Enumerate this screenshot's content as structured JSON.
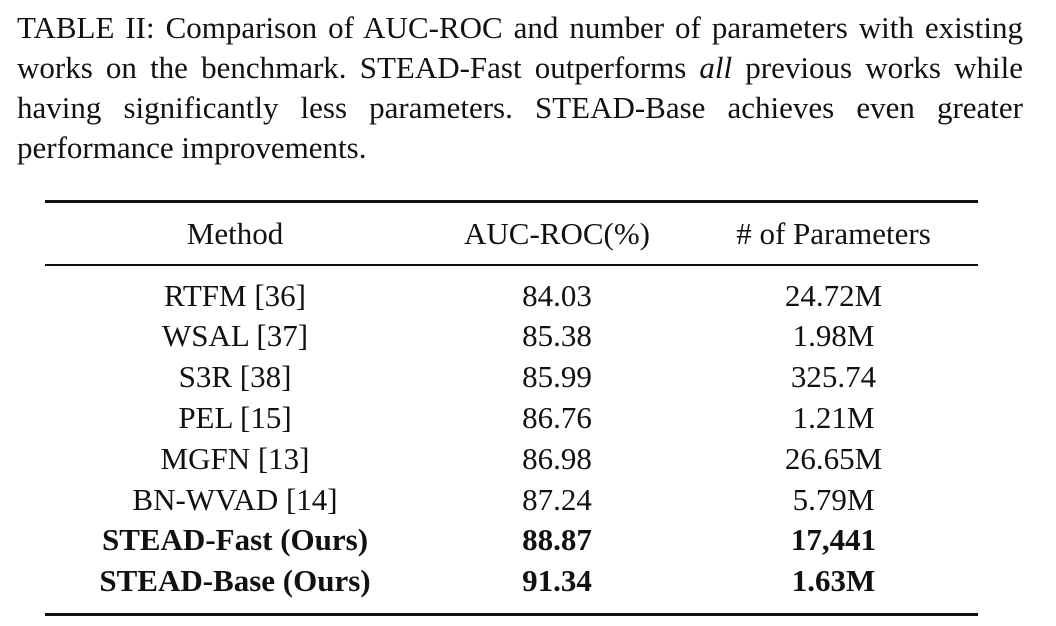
{
  "caption": {
    "before": "TABLE II: Comparison of AUC-ROC and number of parameters with existing works on the benchmark. STEAD-Fast outperforms ",
    "emphasis": "all",
    "after": " previous works while having significantly less parameters. STEAD-Base achieves even greater performance improvements."
  },
  "table": {
    "header": [
      "Method",
      "AUC-ROC(%)",
      "# of Parameters"
    ],
    "rows": [
      [
        "RTFM [36]",
        "84.03",
        "24.72M"
      ],
      [
        "WSAL [37]",
        "85.38",
        "1.98M"
      ],
      [
        "S3R [38]",
        "85.99",
        "325.74"
      ],
      [
        "PEL [15]",
        "86.76",
        "1.21M"
      ],
      [
        "MGFN [13]",
        "86.98",
        "26.65M"
      ],
      [
        "BN-WVAD [14]",
        "87.24",
        "5.79M"
      ],
      [
        "STEAD-Fast (Ours)",
        "88.87",
        "17,441"
      ],
      [
        "STEAD-Base (Ours)",
        "91.34",
        "1.63M"
      ]
    ]
  }
}
